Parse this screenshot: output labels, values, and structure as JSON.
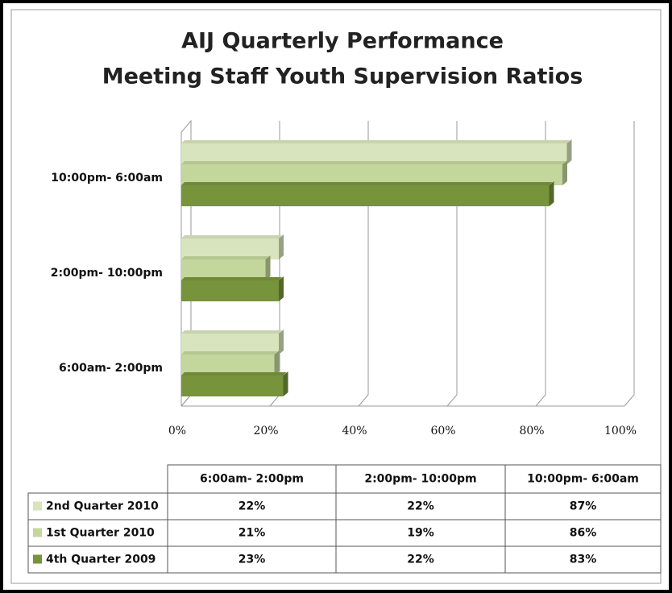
{
  "chart_data": {
    "type": "bar",
    "orientation": "horizontal",
    "three_d": true,
    "title": [
      "AIJ Quarterly Performance",
      "Meeting Staff Youth Supervision Ratios"
    ],
    "categories": [
      "6:00am- 2:00pm",
      "2:00pm- 10:00pm",
      "10:00pm- 6:00am"
    ],
    "series": [
      {
        "name": "2nd Quarter 2010",
        "color": "#d7e4bd",
        "values": [
          22,
          22,
          87
        ],
        "value_labels": [
          "22%",
          "22%",
          "87%"
        ]
      },
      {
        "name": "1st Quarter 2010",
        "color": "#c3d69b",
        "values": [
          21,
          19,
          86
        ],
        "value_labels": [
          "21%",
          "19%",
          "86%"
        ]
      },
      {
        "name": "4th Quarter 2009",
        "color": "#77933c",
        "values": [
          23,
          22,
          83
        ],
        "value_labels": [
          "23%",
          "22%",
          "83%"
        ]
      }
    ],
    "xlim": [
      0,
      100
    ],
    "xticks": [
      {
        "value": 0,
        "label": "0%"
      },
      {
        "value": 20,
        "label": "20%"
      },
      {
        "value": 40,
        "label": "40%"
      },
      {
        "value": 60,
        "label": "60%"
      },
      {
        "value": 80,
        "label": "80%"
      },
      {
        "value": 100,
        "label": "100%"
      }
    ],
    "grid": true,
    "data_table": true
  }
}
